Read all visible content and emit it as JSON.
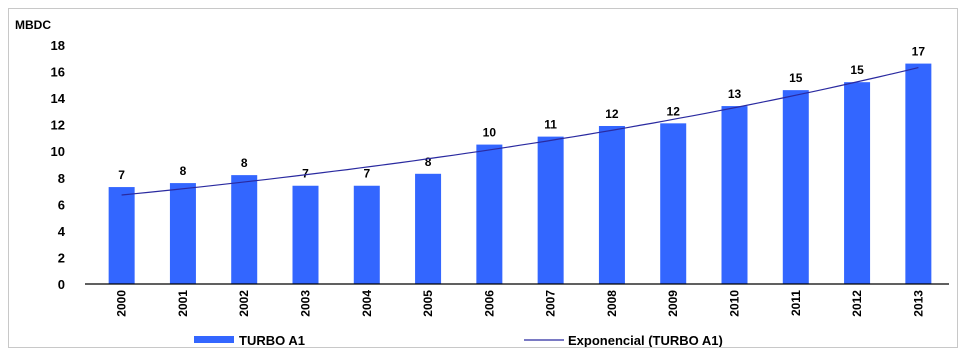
{
  "chart_data": {
    "type": "bar",
    "ylabel": "MBDC",
    "ylim": [
      0,
      18
    ],
    "yticks": [
      0,
      2,
      4,
      6,
      8,
      10,
      12,
      14,
      16,
      18
    ],
    "categories": [
      "2000",
      "2001",
      "2002",
      "2003",
      "2004",
      "2005",
      "2006",
      "2007",
      "2008",
      "2009",
      "2010",
      "2011",
      "2012",
      "2013"
    ],
    "series": [
      {
        "name": "TURBO A1",
        "color": "#3366ff",
        "values": [
          7.3,
          7.6,
          8.2,
          7.4,
          7.4,
          8.3,
          10.5,
          11.1,
          11.9,
          12.1,
          13.4,
          14.6,
          15.2,
          16.6
        ],
        "data_labels": [
          "7",
          "8",
          "8",
          "7",
          "7",
          "8",
          "10",
          "11",
          "12",
          "12",
          "13",
          "15",
          "15",
          "17"
        ]
      }
    ],
    "trendline": {
      "name": "Exponencial (TURBO A1)",
      "type": "exponential",
      "color": "#2a2aa0",
      "start_value": 6.7,
      "end_value": 16.3
    },
    "legend": "bottom",
    "grid": false
  }
}
